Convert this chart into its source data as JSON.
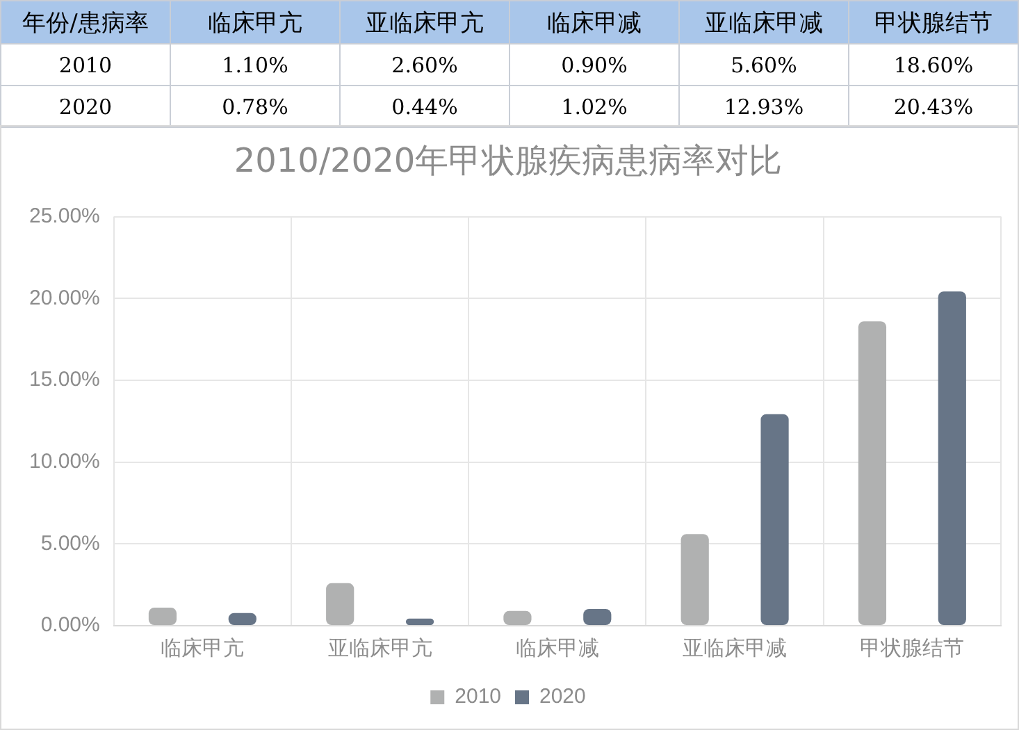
{
  "chart_data": {
    "type": "bar",
    "title": "2010/2020年甲状腺疾病患病率对比",
    "annotations": [
      "年份/患病率"
    ],
    "categories": [
      "临床甲亢",
      "亚临床甲亢",
      "临床甲减",
      "亚临床甲减",
      "甲状腺结节"
    ],
    "series": [
      {
        "name": "2010",
        "color": "#b0b1b1",
        "values": [
          1.1,
          2.6,
          0.9,
          5.6,
          18.6
        ],
        "value_labels": [
          "1.10%",
          "2.60%",
          "0.90%",
          "5.60%",
          "18.60%"
        ]
      },
      {
        "name": "2020",
        "color": "#677587",
        "values": [
          0.78,
          0.44,
          1.02,
          12.93,
          20.43
        ],
        "value_labels": [
          "0.78%",
          "0.44%",
          "1.02%",
          "12.93%",
          "20.43%"
        ]
      }
    ],
    "ylim": [
      0,
      25
    ],
    "yticks": [
      {
        "value": 0,
        "label": "0.00%"
      },
      {
        "value": 5,
        "label": "5.00%"
      },
      {
        "value": 10,
        "label": "10.00%"
      },
      {
        "value": 15,
        "label": "15.00%"
      },
      {
        "value": 20,
        "label": "20.00%"
      },
      {
        "value": 25,
        "label": "25.00%"
      }
    ],
    "grid": true,
    "legend": "bottom"
  }
}
